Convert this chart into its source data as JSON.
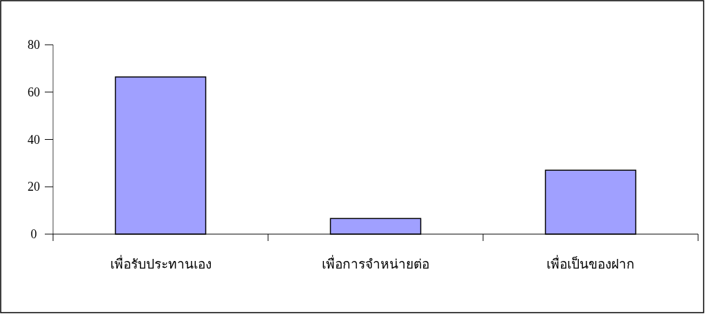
{
  "chart_data": {
    "type": "bar",
    "categories": [
      "เพื่อรับประทานเอง",
      "เพื่อการจำหน่ายต่อ",
      "เพื่อเป็นของฝาก"
    ],
    "values": [
      66.4,
      6.6,
      27.0
    ],
    "color": "#a0a0ff",
    "ylim": [
      0,
      80
    ],
    "yticks": [
      0,
      20,
      40,
      60,
      80
    ]
  }
}
